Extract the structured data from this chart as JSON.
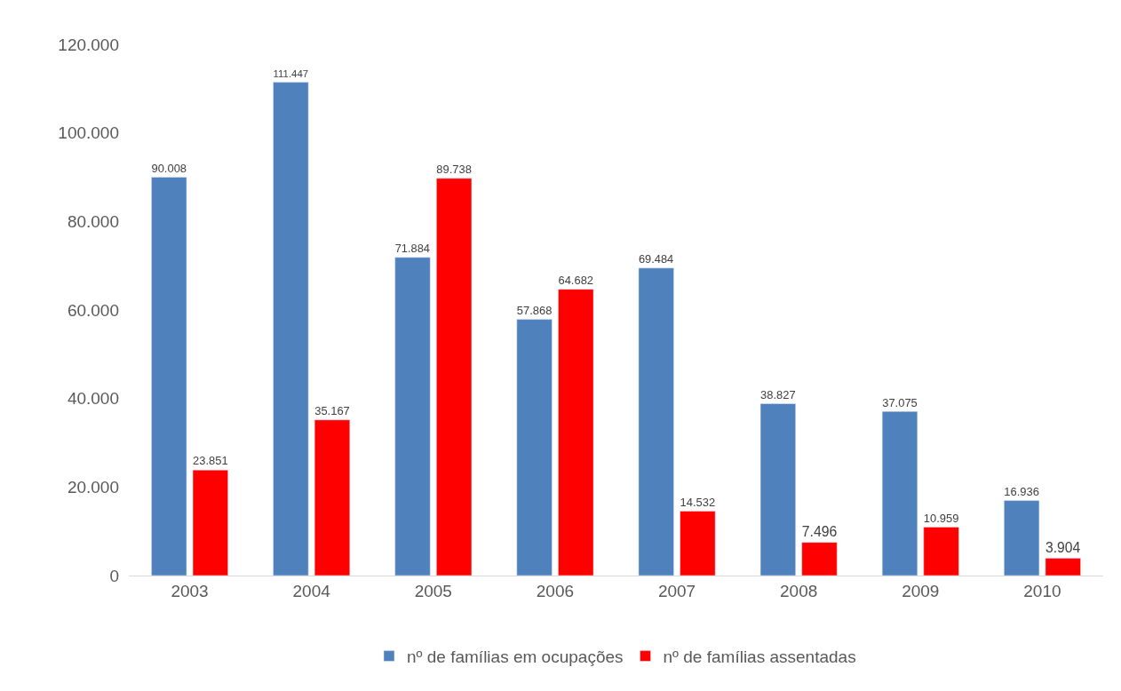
{
  "chart_data": {
    "type": "bar",
    "categories": [
      "2003",
      "2004",
      "2005",
      "2006",
      "2007",
      "2008",
      "2009",
      "2010"
    ],
    "series": [
      {
        "name": "nº de famílias em ocupações",
        "color": "#4f81bd",
        "values": [
          90008,
          111447,
          71884,
          57868,
          69484,
          38827,
          37075,
          16936
        ],
        "value_labels": [
          "90.008",
          "111.447",
          "71.884",
          "57.868",
          "69.484",
          "38.827",
          "37.075",
          "16.936"
        ]
      },
      {
        "name": "nº de famílias assentadas",
        "color": "#ff0000",
        "values": [
          23851,
          35167,
          89738,
          64682,
          14532,
          7496,
          10959,
          3904
        ],
        "value_labels": [
          "23.851",
          "35.167",
          "89.738",
          "64.682",
          "14.532",
          "7.496",
          "10.959",
          "3.904"
        ]
      }
    ],
    "ylim": [
      0,
      120000
    ],
    "yticks": [
      0,
      {
        "value": 20000,
        "label": "20.000"
      },
      {
        "value": 40000,
        "label": "40.000"
      },
      {
        "value": 60000,
        "label": "60.000"
      },
      {
        "value": 80000,
        "label": "80.000"
      },
      {
        "value": 100000,
        "label": "100.000"
      },
      {
        "value": 120000,
        "label": "120.000"
      }
    ],
    "grid": false,
    "legend": "bottom"
  }
}
